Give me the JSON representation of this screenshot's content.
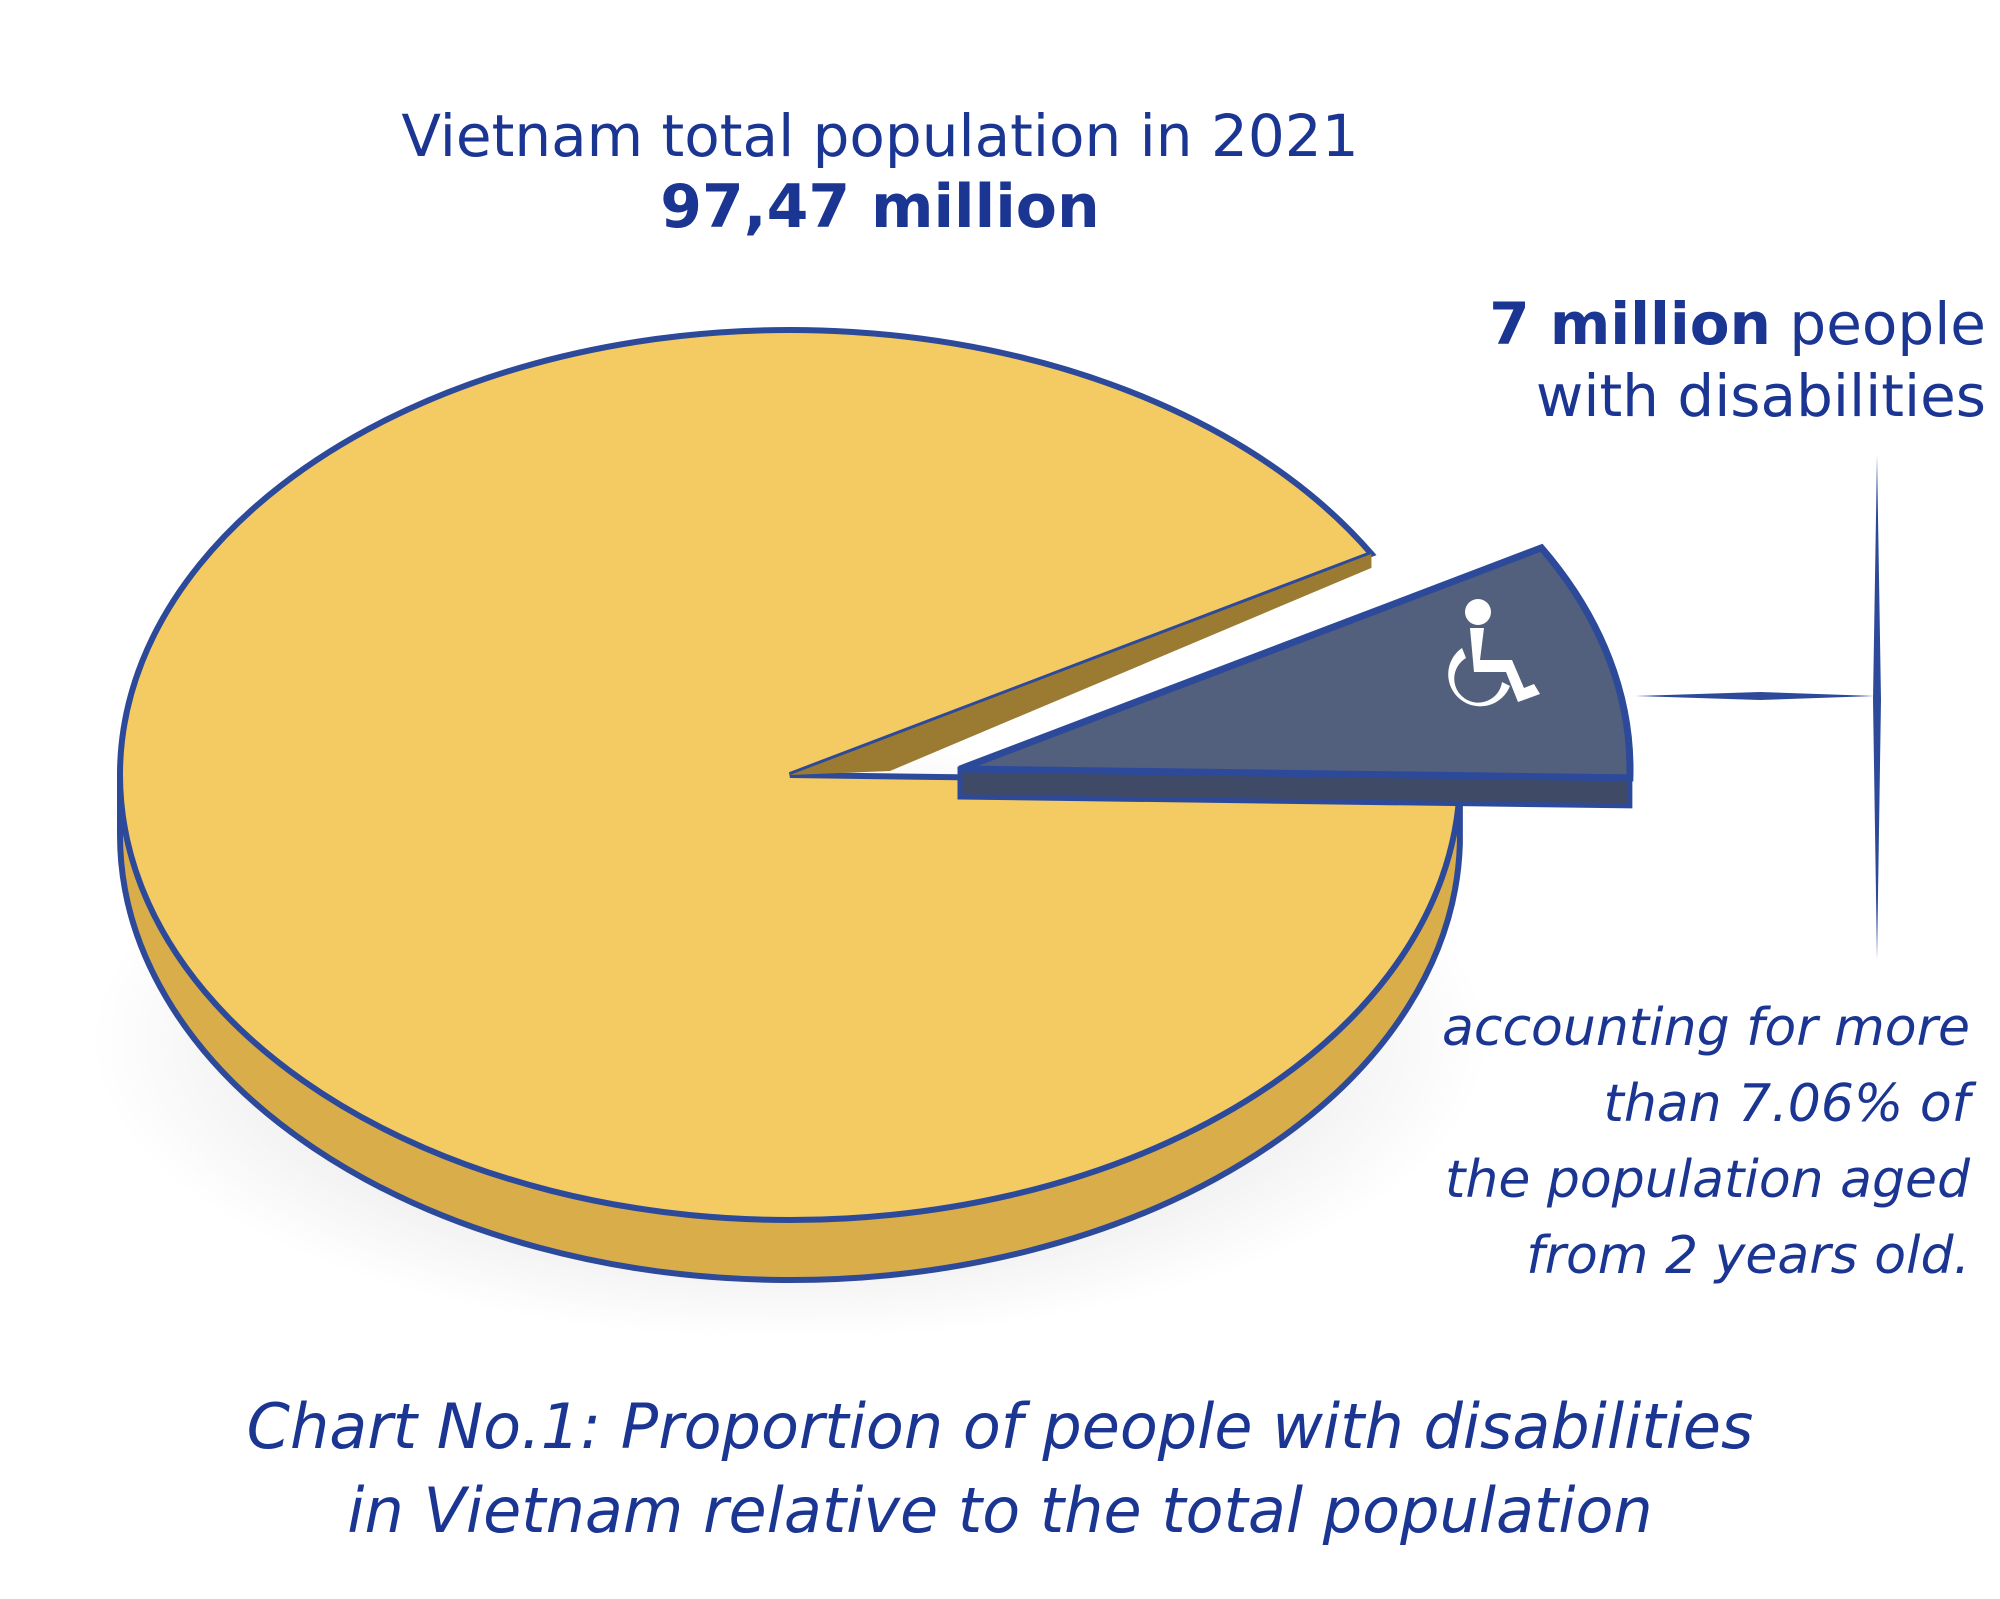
{
  "chart_data": {
    "type": "pie",
    "title": "Vietnam total population in 2021",
    "total_label": "97,47 million",
    "slices": [
      {
        "value": 92.94
      },
      {
        "value": 7.06,
        "exploded": true,
        "icon": "wheelchair-icon"
      }
    ],
    "callout": {
      "bold": "7 million",
      "rest": " people",
      "line2": "with disabilities"
    },
    "note": [
      "accounting for more",
      "than 7.06% of",
      "the population aged",
      "from 2 years old."
    ],
    "caption": [
      "Chart No.1: Proportion of people with disabilities",
      "in Vietnam relative to the total population"
    ],
    "colors": {
      "main": "#f4cb63",
      "main_side": "#d9ad4a",
      "main_inner": "#9b7b32",
      "slice": "#525f7d",
      "slice_side": "#3f4a66",
      "outline": "#2d4a9a",
      "text": "#1b3592"
    }
  }
}
